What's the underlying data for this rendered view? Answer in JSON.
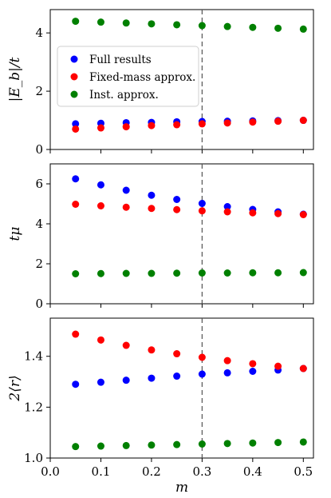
{
  "chart_data": [
    {
      "type": "scatter",
      "ylabel": "|E_b|/t",
      "xlim": [
        0.0,
        0.52
      ],
      "ylim": [
        0,
        4.8
      ],
      "yticks": [
        0,
        2,
        4
      ],
      "vline": 0.3,
      "x": [
        0.05,
        0.1,
        0.15,
        0.2,
        0.25,
        0.3,
        0.35,
        0.4,
        0.45,
        0.5
      ],
      "series": [
        {
          "name": "Full results",
          "color": "#0000ff",
          "values": [
            0.88,
            0.9,
            0.92,
            0.93,
            0.95,
            0.96,
            0.97,
            0.98,
            0.99,
            1.0
          ]
        },
        {
          "name": "Fixed-mass approx.",
          "color": "#ff0000",
          "values": [
            0.7,
            0.74,
            0.78,
            0.82,
            0.85,
            0.88,
            0.91,
            0.94,
            0.97,
            1.0
          ]
        },
        {
          "name": "Inst. approx.",
          "color": "#008000",
          "values": [
            4.4,
            4.37,
            4.34,
            4.31,
            4.28,
            4.25,
            4.22,
            4.19,
            4.16,
            4.13
          ]
        }
      ],
      "legend": "upper-left"
    },
    {
      "type": "scatter",
      "ylabel": "tμ",
      "xlim": [
        0.0,
        0.52
      ],
      "ylim": [
        0,
        7
      ],
      "yticks": [
        0,
        2,
        4,
        6
      ],
      "vline": 0.3,
      "x": [
        0.05,
        0.1,
        0.15,
        0.2,
        0.25,
        0.3,
        0.35,
        0.4,
        0.45,
        0.5
      ],
      "series": [
        {
          "name": "Full results",
          "color": "#0000ff",
          "values": [
            6.25,
            5.95,
            5.68,
            5.43,
            5.22,
            5.02,
            4.86,
            4.72,
            4.6,
            4.48
          ]
        },
        {
          "name": "Fixed-mass approx.",
          "color": "#ff0000",
          "values": [
            4.98,
            4.9,
            4.83,
            4.77,
            4.71,
            4.65,
            4.6,
            4.55,
            4.51,
            4.46
          ]
        },
        {
          "name": "Inst. approx.",
          "color": "#008000",
          "values": [
            1.5,
            1.51,
            1.52,
            1.52,
            1.53,
            1.54,
            1.54,
            1.55,
            1.55,
            1.56
          ]
        }
      ]
    },
    {
      "type": "scatter",
      "xlabel": "m",
      "ylabel": "2⟨r⟩",
      "xlim": [
        0.0,
        0.52
      ],
      "ylim": [
        1.0,
        1.55
      ],
      "yticks": [
        1.0,
        1.2,
        1.4
      ],
      "xticks": [
        0.0,
        0.1,
        0.2,
        0.3,
        0.4,
        0.5
      ],
      "vline": 0.3,
      "x": [
        0.05,
        0.1,
        0.15,
        0.2,
        0.25,
        0.3,
        0.35,
        0.4,
        0.45,
        0.5
      ],
      "series": [
        {
          "name": "Full results",
          "color": "#0000ff",
          "values": [
            1.29,
            1.298,
            1.306,
            1.314,
            1.322,
            1.33,
            1.335,
            1.341,
            1.346,
            1.352
          ]
        },
        {
          "name": "Fixed-mass approx.",
          "color": "#ff0000",
          "values": [
            1.487,
            1.464,
            1.443,
            1.425,
            1.41,
            1.396,
            1.383,
            1.371,
            1.361,
            1.352
          ]
        },
        {
          "name": "Inst. approx.",
          "color": "#008000",
          "values": [
            1.045,
            1.047,
            1.049,
            1.051,
            1.053,
            1.055,
            1.057,
            1.059,
            1.061,
            1.063
          ]
        }
      ]
    }
  ]
}
